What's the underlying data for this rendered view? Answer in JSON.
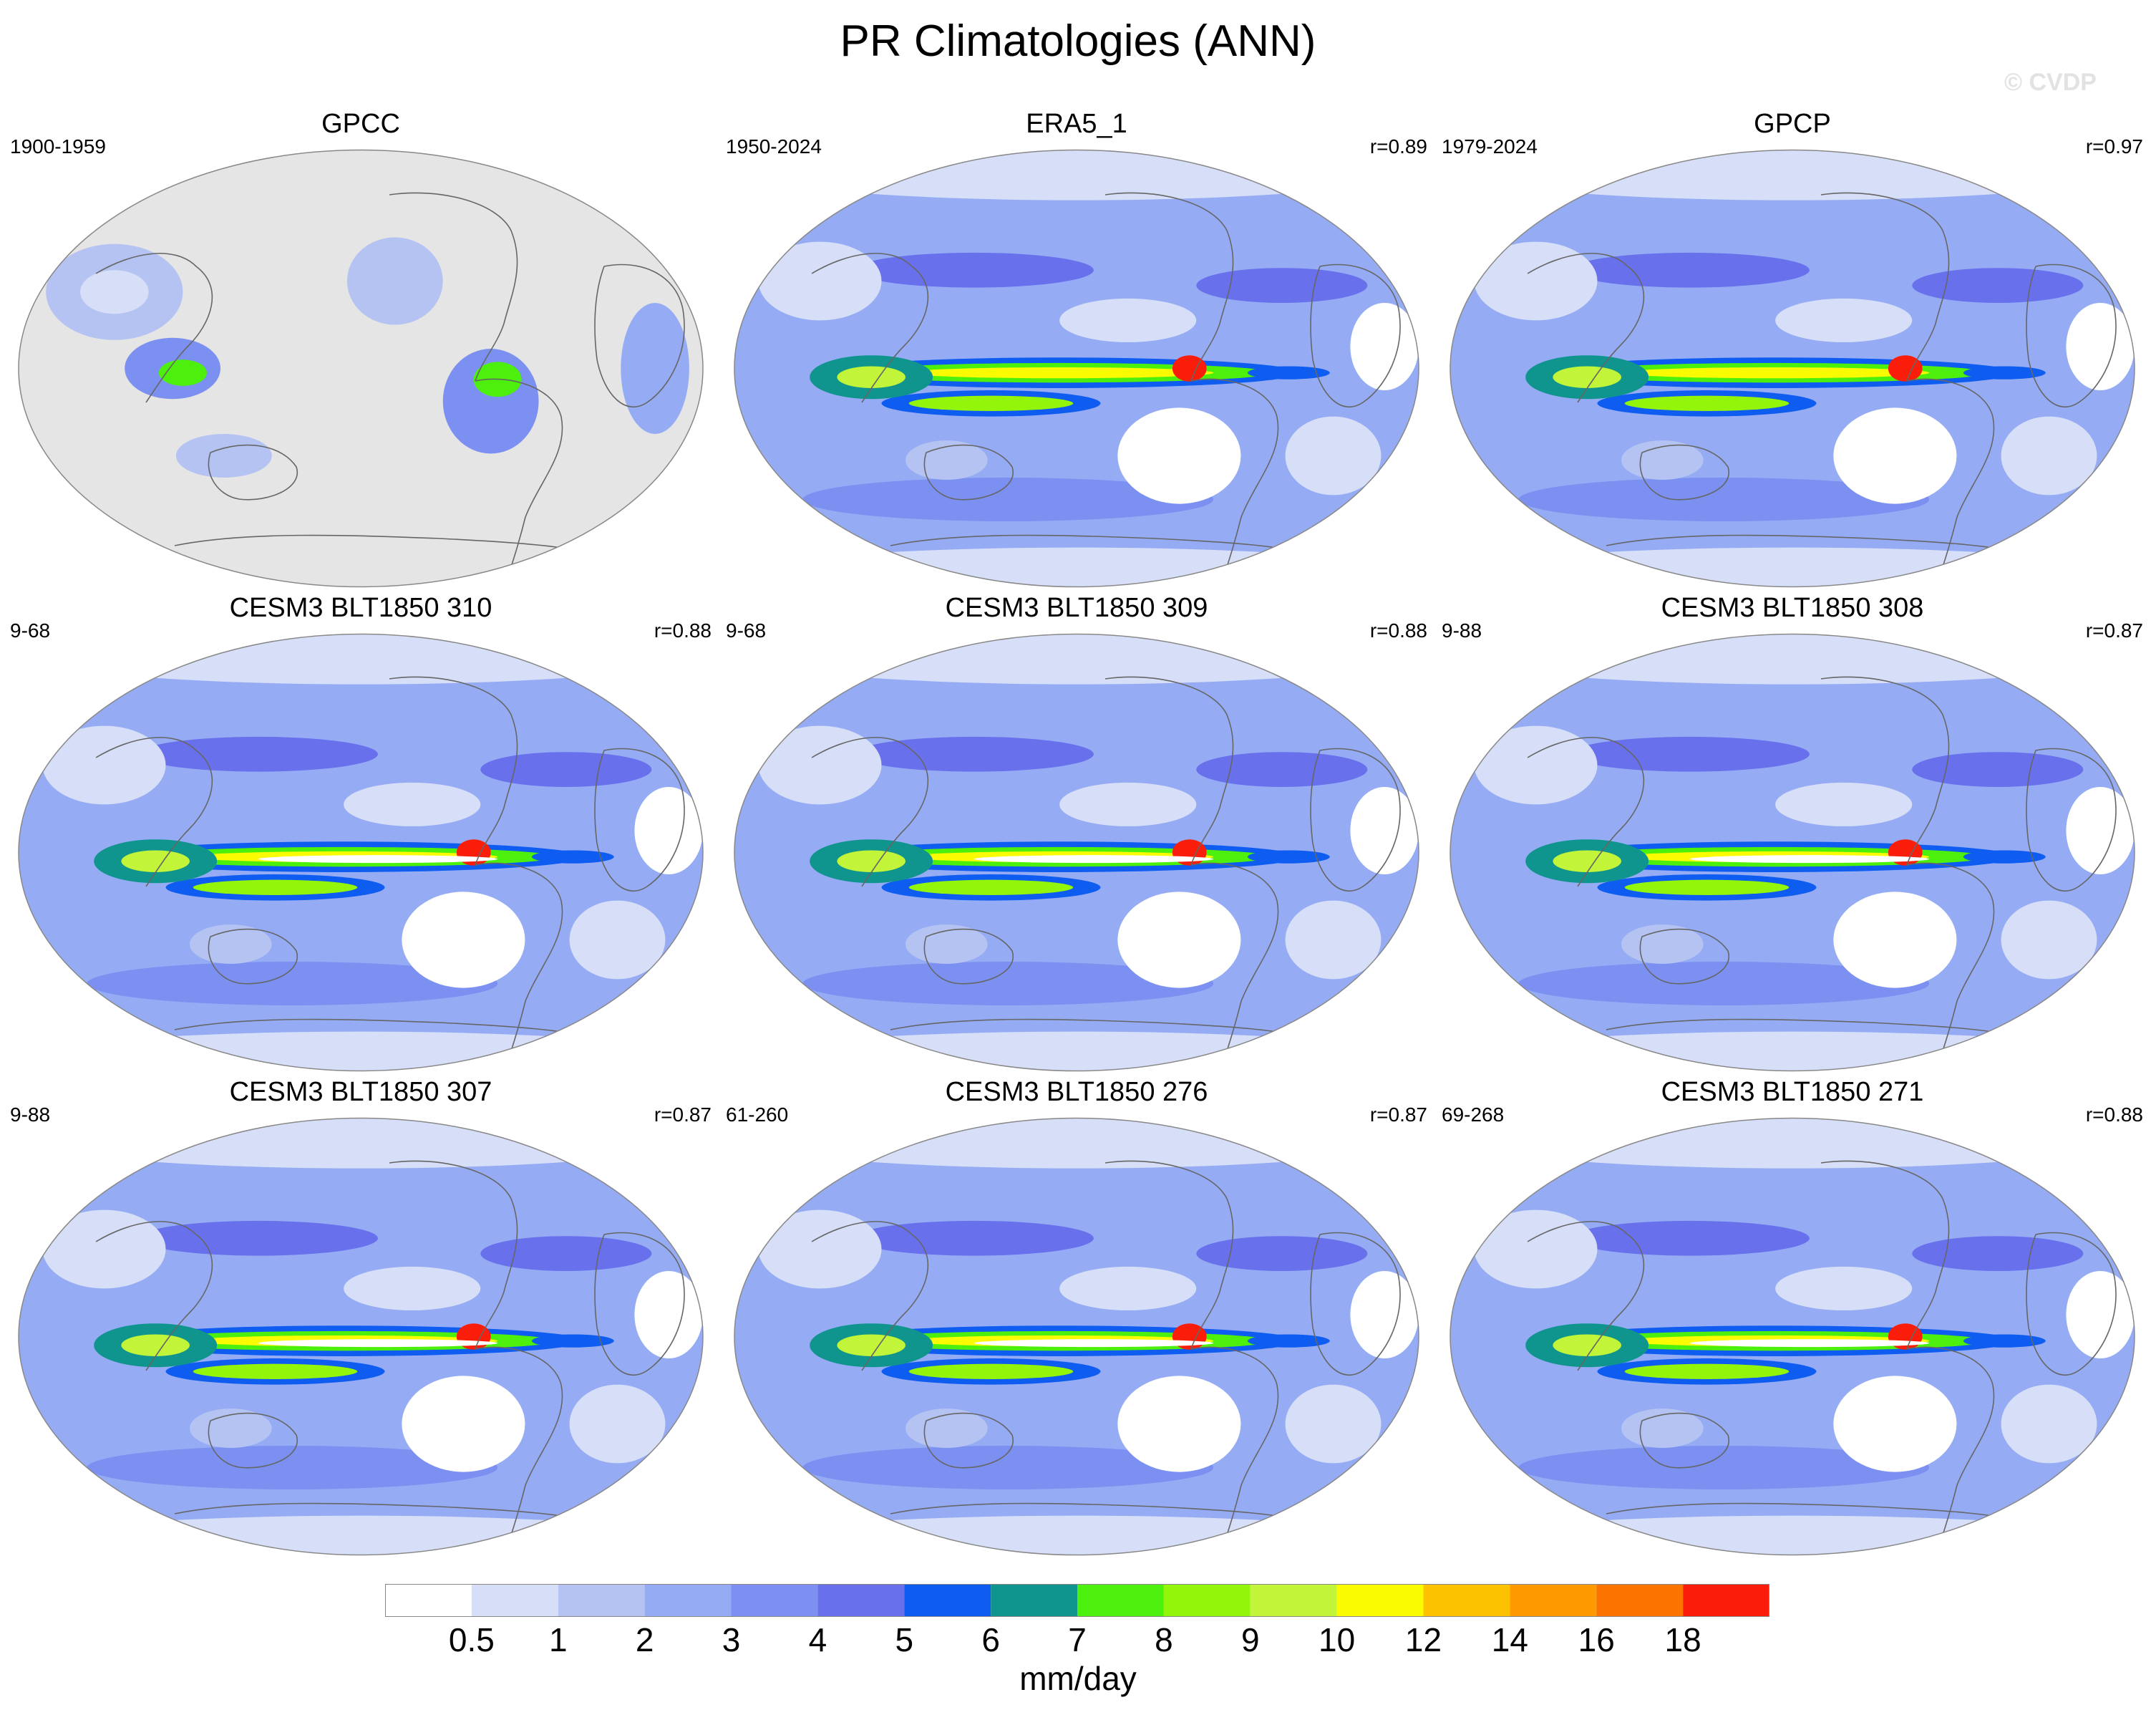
{
  "title": "PR Climatologies (ANN)",
  "watermark": "© CVDP",
  "panels": [
    {
      "title": "GPCC",
      "years": "1900-1959",
      "corr": "",
      "kind": "land"
    },
    {
      "title": "ERA5_1",
      "years": "1950-2024",
      "corr": "r=0.89",
      "kind": "full"
    },
    {
      "title": "GPCP",
      "years": "1979-2024",
      "corr": "r=0.97",
      "kind": "full"
    },
    {
      "title": "CESM3 BLT1850 310",
      "years": "9-68",
      "corr": "r=0.88",
      "kind": "model"
    },
    {
      "title": "CESM3 BLT1850 309",
      "years": "9-68",
      "corr": "r=0.88",
      "kind": "model"
    },
    {
      "title": "CESM3 BLT1850 308",
      "years": "9-88",
      "corr": "r=0.87",
      "kind": "model"
    },
    {
      "title": "CESM3 BLT1850 307",
      "years": "9-88",
      "corr": "r=0.87",
      "kind": "model"
    },
    {
      "title": "CESM3 BLT1850 276",
      "years": "61-260",
      "corr": "r=0.87",
      "kind": "model"
    },
    {
      "title": "CESM3 BLT1850 271",
      "years": "69-268",
      "corr": "r=0.88",
      "kind": "model"
    }
  ],
  "colorbar": {
    "unit": "mm/day",
    "ticks": [
      "0.5",
      "1",
      "2",
      "3",
      "4",
      "5",
      "6",
      "7",
      "8",
      "9",
      "10",
      "12",
      "14",
      "16",
      "18"
    ],
    "colors": [
      "#ffffff",
      "#d7def7",
      "#b5c3f2",
      "#95acf5",
      "#7b90f0",
      "#6870ec",
      "#0f5cf0",
      "#10948e",
      "#4cf00c",
      "#93f50a",
      "#c2f53a",
      "#fafa00",
      "#fcc200",
      "#fc9a00",
      "#fc7400",
      "#fa1e0a"
    ]
  },
  "land_color": "#e5e5e5"
}
